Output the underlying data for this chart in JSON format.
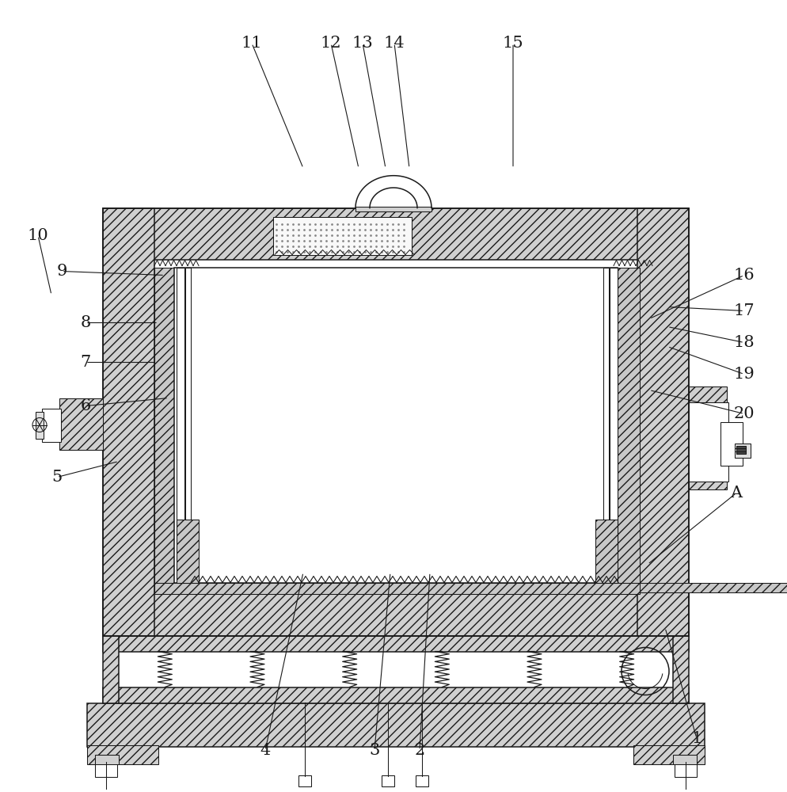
{
  "bg": "#ffffff",
  "lc": "#1a1a1a",
  "hfc": "#d0d0d0",
  "lw": 1.1,
  "lw2": 0.75,
  "fs": 15,
  "fig_w": 9.95,
  "fig_h": 10.0,
  "canvas": 995,
  "leaders": [
    [
      "1",
      880,
      930,
      840,
      790
    ],
    [
      "2",
      530,
      945,
      543,
      720
    ],
    [
      "3",
      473,
      945,
      493,
      720
    ],
    [
      "4",
      335,
      945,
      383,
      720
    ],
    [
      "5",
      72,
      600,
      150,
      580
    ],
    [
      "6",
      108,
      510,
      213,
      500
    ],
    [
      "7",
      108,
      455,
      198,
      455
    ],
    [
      "8",
      108,
      405,
      200,
      405
    ],
    [
      "9",
      78,
      340,
      208,
      345
    ],
    [
      "10",
      48,
      295,
      65,
      370
    ],
    [
      "11",
      318,
      52,
      383,
      210
    ],
    [
      "12",
      418,
      52,
      453,
      210
    ],
    [
      "13",
      458,
      52,
      487,
      210
    ],
    [
      "14",
      498,
      52,
      517,
      210
    ],
    [
      "15",
      648,
      52,
      648,
      210
    ],
    [
      "16",
      940,
      345,
      820,
      400
    ],
    [
      "17",
      940,
      390,
      843,
      385
    ],
    [
      "18",
      940,
      430,
      843,
      410
    ],
    [
      "19",
      940,
      470,
      843,
      435
    ],
    [
      "20",
      940,
      520,
      820,
      490
    ],
    [
      "A",
      930,
      620,
      818,
      710
    ]
  ]
}
